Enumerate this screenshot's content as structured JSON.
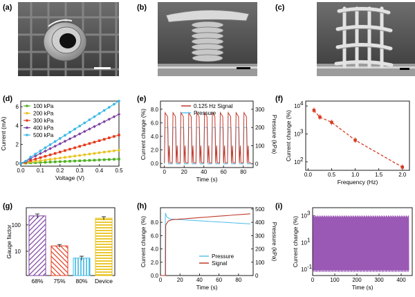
{
  "panel_labels": [
    "(a)",
    "(b)",
    "(c)",
    "(d)",
    "(e)",
    "(f)",
    "(g)",
    "(h)",
    "(i)"
  ],
  "colors": {
    "green": "#4caf1f",
    "yellow": "#e8c21a",
    "red": "#e33a1c",
    "purple": "#7a3fa0",
    "cyan": "#3bb8e6",
    "dark_red": "#c0392b",
    "sky": "#5bc0eb",
    "violet": "#9b59b6",
    "brick": "#d9381e"
  },
  "micrographs": [
    {
      "name": "ring-structure",
      "scale_bar": true
    },
    {
      "name": "coil-pillar",
      "scale_bar": true
    },
    {
      "name": "woven-lattice",
      "scale_bar": true
    }
  ],
  "chart_data": [
    {
      "id": "d",
      "type": "line",
      "xlabel": "Voltage (V)",
      "ylabel": "Current (mA)",
      "xlim": [
        0.0,
        0.5
      ],
      "ylim": [
        -0.3,
        6.6
      ],
      "xticks": [
        "0.0",
        "0.1",
        "0.2",
        "0.3",
        "0.4",
        "0.5"
      ],
      "yticks": [
        "0",
        "2",
        "4",
        "6"
      ],
      "legend_position": "top-left",
      "x": [
        0,
        0.025,
        0.05,
        0.075,
        0.1,
        0.125,
        0.15,
        0.175,
        0.2,
        0.225,
        0.25,
        0.275,
        0.3,
        0.325,
        0.35,
        0.375,
        0.4,
        0.425,
        0.45,
        0.475,
        0.5
      ],
      "series": [
        {
          "name": "100 kPa",
          "color": "#4caf1f",
          "slope": 0.9
        },
        {
          "name": "200 kPa",
          "color": "#e8c21a",
          "slope": 2.8
        },
        {
          "name": "300 kPa",
          "color": "#e33a1c",
          "slope": 6.0
        },
        {
          "name": "400 kPa",
          "color": "#7a3fa0",
          "slope": 10.4
        },
        {
          "name": "500 kPa",
          "color": "#3bb8e6",
          "slope": 13.2
        }
      ]
    },
    {
      "id": "e",
      "type": "line",
      "xlabel": "Time (s)",
      "ylabel": "Current change (%)",
      "y2label": "Pressure (kPa)",
      "xlim": [
        -4,
        90
      ],
      "ylim": [
        -0.6,
        9.2
      ],
      "y2lim": [
        -20,
        345
      ],
      "xticks": [
        "0",
        "20",
        "40",
        "60",
        "80"
      ],
      "yticks": [
        "0.0",
        "2.0",
        "4.0",
        "6.0",
        "8.0"
      ],
      "y2ticks": [
        "0",
        "100",
        "200",
        "300"
      ],
      "legend_position": "top-center",
      "period": 8,
      "cycles": 11,
      "signal_peak": 7.5,
      "signal_base": 0.1,
      "pressure_peak": 200,
      "pressure_base": 0,
      "series": [
        {
          "name": "0.125 Hz Signal",
          "color": "#c0392b"
        },
        {
          "name": "Pressure",
          "color": "#5bc0eb"
        }
      ]
    },
    {
      "id": "f",
      "type": "line",
      "yscale": "log",
      "xlabel": "Frequency (Hz)",
      "ylabel": "Current change (%)",
      "xlim": [
        -0.05,
        2.15
      ],
      "ylim": [
        50,
        15000
      ],
      "xticks": [
        "0.0",
        "0.5",
        "1.0",
        "1.5",
        "2.0"
      ],
      "yticks": [
        "10",
        "10",
        "10"
      ],
      "ytick_exponents": [
        "2",
        "3",
        "4"
      ],
      "x": [
        0.125,
        0.25,
        0.5,
        1.0,
        2.0
      ],
      "y": [
        7000,
        4000,
        2600,
        600,
        65
      ],
      "series": [
        {
          "name": "",
          "color": "#d9381e"
        }
      ]
    },
    {
      "id": "g",
      "type": "bar",
      "yscale": "log",
      "ylabel": "Gauge factor",
      "ylim": [
        1.2,
        450
      ],
      "categories": [
        "68%",
        "75%",
        "80%",
        "Device"
      ],
      "values": [
        220,
        16,
        5.5,
        180
      ],
      "errors": [
        40,
        2,
        1,
        25
      ],
      "yticks": [
        "10",
        "100"
      ],
      "series": [
        {
          "name": "",
          "colors": [
            "#7a3fa0",
            "#e33a1c",
            "#3bb8e6",
            "#e8c21a"
          ]
        }
      ]
    },
    {
      "id": "h",
      "type": "line",
      "xlabel": "Time (s)",
      "ylabel": "Current change (%)",
      "y2label": "Pressure (kPa)",
      "xlim": [
        0,
        95
      ],
      "ylim": [
        0,
        10.2
      ],
      "y2lim": [
        0,
        510
      ],
      "xticks": [
        "0",
        "20",
        "40",
        "60",
        "80"
      ],
      "yticks": [
        "0.0",
        "2.0",
        "4.0",
        "6.0",
        "8.0"
      ],
      "y2ticks": [
        "0",
        "100",
        "200",
        "300",
        "400",
        "500"
      ],
      "legend_position": "bottom-right",
      "series": [
        {
          "name": "Pressure",
          "color": "#5bc0eb"
        },
        {
          "name": "Signal",
          "color": "#c0392b"
        }
      ]
    },
    {
      "id": "i",
      "type": "line",
      "yscale": "log",
      "xlabel": "Time (s)",
      "ylabel": "Current change (%)",
      "xlim": [
        0,
        450
      ],
      "ylim": [
        0.035,
        4000
      ],
      "xticks": [
        "0",
        "100",
        "200",
        "300",
        "400"
      ],
      "yticks": [
        "10",
        "10",
        "10"
      ],
      "ytick_exponents": [
        "-1",
        "1",
        "3"
      ],
      "series": [
        {
          "name": "",
          "color": "#9b59b6",
          "high": 1000,
          "low": 0.08
        }
      ]
    }
  ]
}
